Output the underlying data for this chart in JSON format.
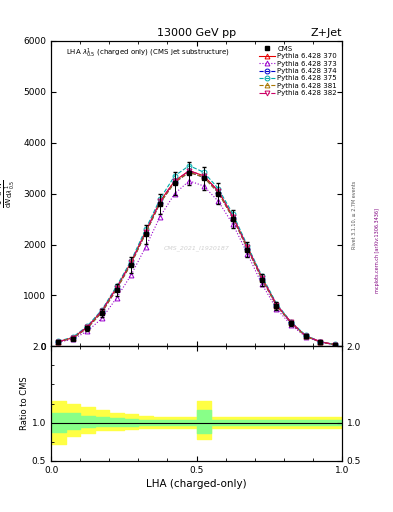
{
  "title_top": "13000 GeV pp",
  "title_right": "Z+Jet",
  "obs_label": "LHA $\\lambda^{1}_{0.5}$ (charged only) (CMS jet substructure)",
  "xlabel": "LHA (charged-only)",
  "ylabel_ratio": "Ratio to CMS",
  "watermark": "CMS_2021_I1920187",
  "rivet_text": "Rivet 3.1.10, ≥ 2.7M events",
  "arxiv_text": "mcplots.cern.ch [arXiv:1306.3436]",
  "x_values": [
    0.025,
    0.075,
    0.125,
    0.175,
    0.225,
    0.275,
    0.325,
    0.375,
    0.425,
    0.475,
    0.525,
    0.575,
    0.625,
    0.675,
    0.725,
    0.775,
    0.825,
    0.875,
    0.925,
    0.975
  ],
  "cms_y": [
    0.08,
    0.15,
    0.35,
    0.65,
    1.1,
    1.6,
    2.2,
    2.8,
    3.2,
    3.4,
    3.3,
    3.0,
    2.5,
    1.9,
    1.3,
    0.8,
    0.45,
    0.2,
    0.08,
    0.03
  ],
  "cms_yerr": [
    0.02,
    0.03,
    0.05,
    0.08,
    0.12,
    0.15,
    0.18,
    0.2,
    0.22,
    0.23,
    0.22,
    0.2,
    0.18,
    0.15,
    0.12,
    0.08,
    0.05,
    0.03,
    0.02,
    0.01
  ],
  "py370_y": [
    0.09,
    0.17,
    0.38,
    0.7,
    1.15,
    1.65,
    2.25,
    2.85,
    3.25,
    3.45,
    3.35,
    3.05,
    2.55,
    1.95,
    1.35,
    0.82,
    0.47,
    0.21,
    0.09,
    0.035
  ],
  "py373_y": [
    0.08,
    0.14,
    0.3,
    0.55,
    0.95,
    1.4,
    1.95,
    2.55,
    3.0,
    3.25,
    3.15,
    2.85,
    2.4,
    1.82,
    1.22,
    0.74,
    0.42,
    0.19,
    0.08,
    0.03
  ],
  "py374_y": [
    0.09,
    0.16,
    0.36,
    0.67,
    1.12,
    1.62,
    2.22,
    2.82,
    3.22,
    3.42,
    3.32,
    3.02,
    2.52,
    1.92,
    1.32,
    0.8,
    0.46,
    0.2,
    0.085,
    0.032
  ],
  "py375_y": [
    0.1,
    0.18,
    0.4,
    0.72,
    1.18,
    1.68,
    2.3,
    2.9,
    3.35,
    3.55,
    3.42,
    3.1,
    2.6,
    1.98,
    1.38,
    0.84,
    0.48,
    0.22,
    0.09,
    0.036
  ],
  "py381_y": [
    0.09,
    0.16,
    0.36,
    0.67,
    1.12,
    1.62,
    2.22,
    2.82,
    3.22,
    3.42,
    3.32,
    3.02,
    2.52,
    1.92,
    1.32,
    0.8,
    0.46,
    0.2,
    0.085,
    0.032
  ],
  "py382_y": [
    0.09,
    0.17,
    0.38,
    0.7,
    1.15,
    1.65,
    2.25,
    2.85,
    3.25,
    3.45,
    3.35,
    3.05,
    2.55,
    1.95,
    1.35,
    0.82,
    0.47,
    0.21,
    0.09,
    0.035
  ],
  "colors": {
    "py370": "#e60000",
    "py373": "#9900cc",
    "py374": "#0000cc",
    "py375": "#00aaaa",
    "py381": "#aa7700",
    "py382": "#cc0066"
  },
  "ylim_main": [
    0,
    6000
  ],
  "ylim_ratio": [
    0.5,
    2.0
  ],
  "yticks_main": [
    0,
    1000,
    2000,
    3000,
    4000,
    5000,
    6000
  ],
  "scale": 1000.0
}
